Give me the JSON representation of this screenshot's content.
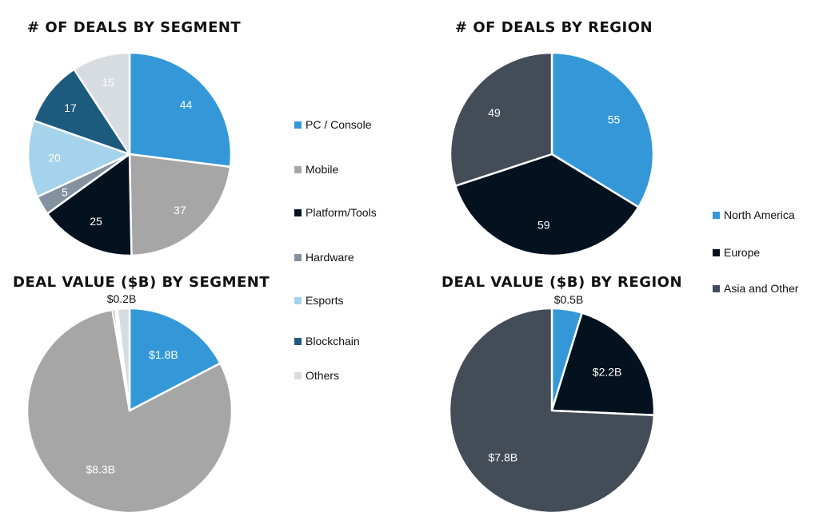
{
  "colors": {
    "PC / Console": "#3498D8",
    "Mobile": "#A6A6A6",
    "Platform/Tools": "#04121F",
    "Hardware": "#8391A1",
    "Esports": "#A5D3EB",
    "Blockchain": "#1D5B7E",
    "Others": "#D7DCE1",
    "North America": "#3498D8",
    "Europe": "#04121F",
    "Asia and Other": "#444D57"
  },
  "segment_legend": [
    "PC / Console",
    "Mobile",
    "Platform/Tools",
    "Hardware",
    "Esports",
    "Blockchain",
    "Others"
  ],
  "region_legend": [
    "North America",
    "Europe",
    "Asia and Other"
  ],
  "chart_data": [
    {
      "type": "pie",
      "title": "# OF DEALS BY SEGMENT",
      "categories": [
        "PC / Console",
        "Mobile",
        "Platform/Tools",
        "Hardware",
        "Esports",
        "Blockchain",
        "Others"
      ],
      "values": [
        44,
        37,
        25,
        5,
        20,
        17,
        15
      ],
      "labels": [
        "44",
        "37",
        "25",
        "5",
        "20",
        "17",
        "15"
      ]
    },
    {
      "type": "pie",
      "title": "# OF DEALS BY REGION",
      "categories": [
        "North America",
        "Europe",
        "Asia and Other"
      ],
      "values": [
        55,
        59,
        49
      ],
      "labels": [
        "55",
        "59",
        "49"
      ]
    },
    {
      "type": "pie",
      "title": "DEAL VALUE ($B) BY SEGMENT",
      "categories": [
        "PC / Console",
        "Mobile",
        "Platform/Tools",
        "Hardware",
        "Esports",
        "Blockchain",
        "Others"
      ],
      "values": [
        1.8,
        8.3,
        0.04,
        0.01,
        0.01,
        0.02,
        0.2
      ],
      "labels": [
        "$1.8B",
        "$8.3B",
        "",
        "",
        "",
        "",
        "$0.2B"
      ]
    },
    {
      "type": "pie",
      "title": "DEAL VALUE ($B) BY REGION",
      "categories": [
        "North America",
        "Europe",
        "Asia and Other"
      ],
      "values": [
        0.5,
        2.2,
        7.8
      ],
      "labels": [
        "$0.5B",
        "$2.2B",
        "$7.8B"
      ]
    }
  ]
}
